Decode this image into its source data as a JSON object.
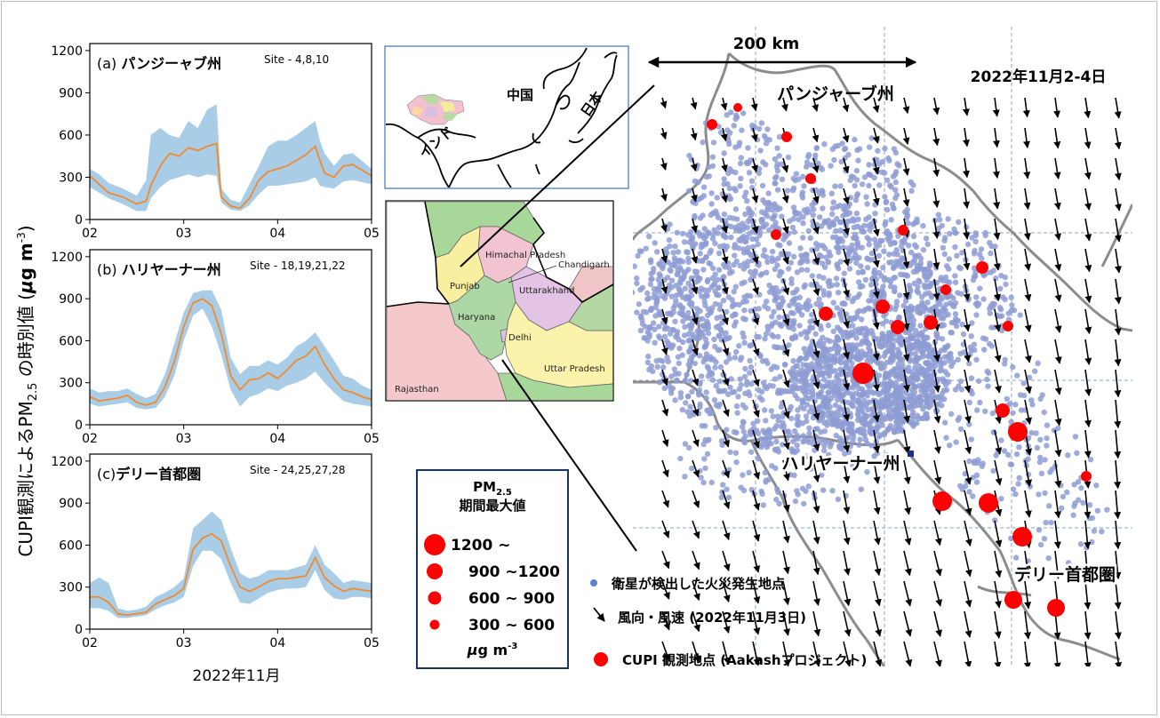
{
  "y_axis_label_main": "CUPI観測によるPM",
  "y_axis_label_sub": "2.5",
  "y_axis_label_rest": " の時別値 (",
  "y_axis_unit_mu": "μ",
  "y_axis_unit_g": "g m",
  "y_axis_unit_exp": "-3",
  "y_axis_unit_close": ")",
  "x_axis_label": "2022年11月",
  "colors": {
    "line": "#f08a2e",
    "band": "#a9cde6",
    "fire": "#8e9cd4",
    "station": "#ff0000",
    "box_border": "#17365d",
    "inset_border": "#4472c4"
  },
  "chart_data": [
    {
      "type": "line",
      "panel_label": "(a) パンジーャブ州",
      "site_label": "Site - 4,8,10",
      "x_ticks": [
        "02",
        "03",
        "04",
        "05"
      ],
      "y_ticks": [
        "0",
        "300",
        "600",
        "900",
        "1200"
      ],
      "ylim": [
        0,
        1250
      ],
      "xlim": [
        2,
        5
      ],
      "x": [
        2.0,
        2.1,
        2.2,
        2.35,
        2.5,
        2.6,
        2.65,
        2.75,
        2.85,
        2.95,
        3.05,
        3.15,
        3.25,
        3.35,
        3.4,
        3.5,
        3.6,
        3.7,
        3.8,
        3.9,
        4.0,
        4.1,
        4.2,
        4.3,
        4.4,
        4.45,
        4.5,
        4.6,
        4.7,
        4.8,
        5.0
      ],
      "median": [
        310,
        250,
        190,
        160,
        110,
        130,
        240,
        380,
        470,
        450,
        510,
        490,
        520,
        540,
        160,
        95,
        80,
        150,
        280,
        340,
        360,
        380,
        420,
        460,
        520,
        420,
        330,
        300,
        380,
        390,
        310
      ],
      "low": [
        230,
        190,
        150,
        110,
        60,
        60,
        150,
        230,
        280,
        300,
        320,
        300,
        320,
        310,
        120,
        70,
        60,
        100,
        180,
        240,
        240,
        250,
        260,
        270,
        300,
        240,
        230,
        220,
        270,
        280,
        250
      ],
      "high": [
        360,
        320,
        260,
        220,
        170,
        280,
        600,
        650,
        600,
        580,
        700,
        650,
        780,
        820,
        220,
        140,
        120,
        250,
        380,
        520,
        560,
        560,
        600,
        650,
        700,
        560,
        470,
        380,
        460,
        470,
        360
      ]
    },
    {
      "type": "line",
      "panel_label": "(b) ハリヤーナー州",
      "site_label": "Site - 18,19,21,22",
      "x_ticks": [
        "02",
        "03",
        "04",
        "05"
      ],
      "y_ticks": [
        "0",
        "300",
        "600",
        "900",
        "1200"
      ],
      "ylim": [
        0,
        1250
      ],
      "xlim": [
        2,
        5
      ],
      "x": [
        2.0,
        2.1,
        2.2,
        2.3,
        2.4,
        2.5,
        2.6,
        2.7,
        2.8,
        2.9,
        3.0,
        3.1,
        3.2,
        3.3,
        3.4,
        3.5,
        3.6,
        3.7,
        3.8,
        3.9,
        4.0,
        4.1,
        4.2,
        4.3,
        4.4,
        4.5,
        4.6,
        4.7,
        4.8,
        4.9,
        5.0
      ],
      "median": [
        200,
        170,
        180,
        190,
        210,
        160,
        140,
        160,
        270,
        450,
        700,
        870,
        900,
        850,
        650,
        350,
        250,
        320,
        330,
        370,
        330,
        390,
        460,
        490,
        560,
        430,
        330,
        250,
        230,
        200,
        180
      ],
      "low": [
        150,
        130,
        140,
        150,
        160,
        120,
        110,
        120,
        200,
        350,
        600,
        780,
        830,
        700,
        500,
        250,
        130,
        200,
        220,
        260,
        240,
        280,
        300,
        330,
        380,
        300,
        230,
        170,
        150,
        140,
        130
      ],
      "high": [
        260,
        230,
        240,
        240,
        260,
        220,
        190,
        220,
        360,
        580,
        800,
        940,
        960,
        960,
        820,
        480,
        360,
        420,
        420,
        460,
        430,
        480,
        560,
        600,
        660,
        560,
        460,
        350,
        330,
        280,
        250
      ]
    },
    {
      "type": "line",
      "panel_label": "(c)デリー首都圏",
      "site_label": "Site - 24,25,27,28",
      "x_ticks": [
        "02",
        "03",
        "04",
        "05"
      ],
      "y_ticks": [
        "0",
        "300",
        "600",
        "900",
        "1200"
      ],
      "ylim": [
        0,
        1250
      ],
      "xlim": [
        2,
        5
      ],
      "x": [
        2.0,
        2.1,
        2.2,
        2.3,
        2.4,
        2.5,
        2.6,
        2.7,
        2.8,
        2.9,
        3.0,
        3.1,
        3.2,
        3.3,
        3.4,
        3.5,
        3.6,
        3.7,
        3.8,
        3.9,
        4.0,
        4.1,
        4.2,
        4.3,
        4.4,
        4.5,
        4.6,
        4.7,
        4.8,
        4.9,
        5.0
      ],
      "median": [
        230,
        230,
        190,
        110,
        100,
        110,
        120,
        180,
        210,
        240,
        290,
        570,
        650,
        680,
        630,
        450,
        300,
        270,
        300,
        340,
        360,
        360,
        370,
        380,
        510,
        370,
        310,
        270,
        290,
        280,
        270
      ],
      "low": [
        150,
        150,
        130,
        80,
        80,
        90,
        100,
        140,
        170,
        190,
        230,
        450,
        560,
        560,
        500,
        330,
        190,
        180,
        220,
        260,
        280,
        290,
        290,
        300,
        420,
        280,
        220,
        210,
        230,
        230,
        220
      ],
      "high": [
        330,
        370,
        330,
        150,
        130,
        140,
        160,
        230,
        260,
        300,
        360,
        720,
        780,
        840,
        780,
        580,
        400,
        360,
        380,
        420,
        420,
        420,
        440,
        460,
        600,
        460,
        400,
        330,
        350,
        340,
        330
      ]
    }
  ],
  "inset_world": {
    "label_china": "中国",
    "label_japan": "日本",
    "label_india": "インド"
  },
  "inset_regions": {
    "himachal": "Himachal Pradesh",
    "chandigarh": "Chandigarh",
    "punjab": "Punjab",
    "uttarakhand": "Uttarakhand",
    "haryana": "Haryana",
    "delhi": "Delhi",
    "uttar_pradesh": "Uttar Pradesh",
    "rajasthan": "Rajasthan"
  },
  "main_map": {
    "scale_label": "200 km",
    "date_label": "2022年11月2-4日",
    "label_punjab": "パンジャーブ州",
    "label_haryana": "ハリヤーナー州",
    "label_delhi": "デリー首都圏"
  },
  "size_legend": {
    "title_pm": "PM",
    "title_sub": "2.5",
    "title_line2": "期間最大値",
    "items": [
      {
        "label": "1200 ~",
        "r": 12
      },
      {
        "label": "900 ~1200",
        "r": 9
      },
      {
        "label": "600 ~  900",
        "r": 7.5
      },
      {
        "label": "300 ~  600",
        "r": 5.5
      }
    ],
    "unit_mu": "μ",
    "unit_text": "g m",
    "unit_exp": "-3"
  },
  "map_legend": {
    "fire": "衛星が検出した火災発生地点",
    "wind": "風向・風速 (2022年11月3日)",
    "station": "CUPI 観測地点 (Aakashプロジェクト)"
  }
}
